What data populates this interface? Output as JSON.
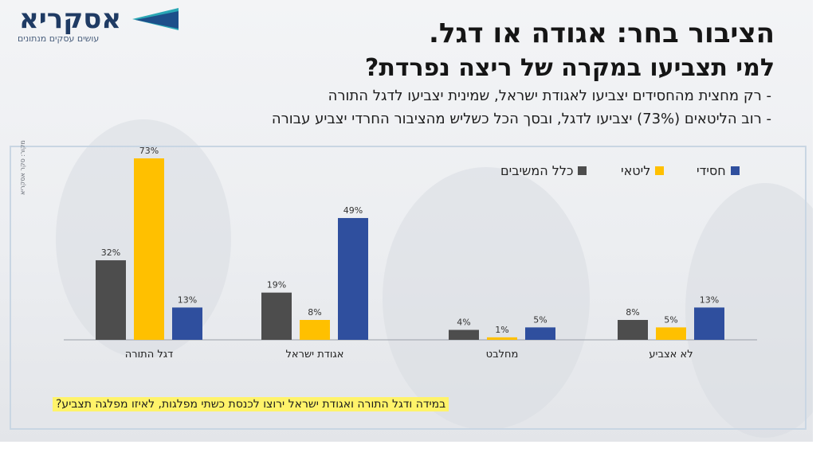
{
  "logo": {
    "name": "אסקריא",
    "tagline": "עושים עסקים מנתונים"
  },
  "side_note": "מקור: סקר אסקריא",
  "header": {
    "title": "הציבור בחר: אגודה או דגל.",
    "subtitle": "למי תצביעו במקרה של ריצה נפרדת?",
    "bullets": [
      "- רק מחצית מהחסידים יצביעו לאגודת ישראל, שמינית יצביעו לדגל התורה",
      "- רוב הליטאים (73%) יצביעו לדגל, ובסך הכל כשליש מהציבור החרדי יצביע עבורה"
    ]
  },
  "question": "במידה ודגל התורה ואגודת ישראל ירוצו לכנסת כשתי מפלגות, לאיזו מפלגה תצביע?",
  "chart_data": {
    "type": "bar",
    "categories": [
      "דגל התורה",
      "אגודת ישראל",
      "מחלבט",
      "לא אצביע"
    ],
    "series": [
      {
        "name": "כלל המשיבים",
        "color": "#4d4d4d",
        "values": [
          32,
          19,
          4,
          8
        ]
      },
      {
        "name": "ליטאי",
        "color": "#ffc000",
        "values": [
          73,
          8,
          1,
          5
        ]
      },
      {
        "name": "חסידי",
        "color": "#2f4f9e",
        "values": [
          13,
          49,
          5,
          13
        ]
      }
    ],
    "value_suffix": "%",
    "ylim": [
      0,
      73
    ],
    "grid": false,
    "legend": "top-right"
  }
}
